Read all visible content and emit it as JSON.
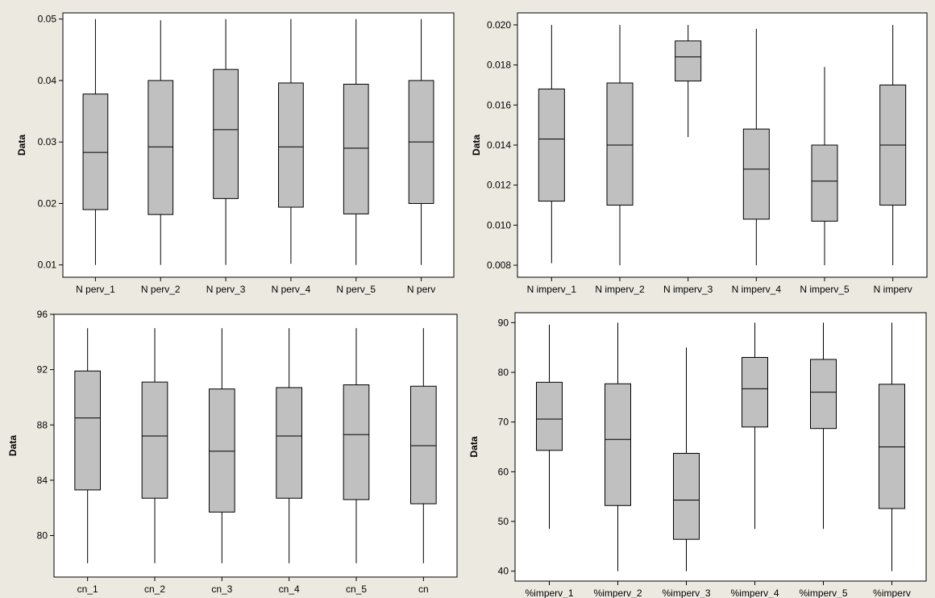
{
  "chart_data": [
    {
      "type": "box",
      "ylabel": "Data",
      "ylim": [
        0.008,
        0.051
      ],
      "yticks": [
        0.01,
        0.02,
        0.03,
        0.04,
        0.05
      ],
      "ytick_labels": [
        "0.01",
        "0.02",
        "0.03",
        "0.04",
        "0.05"
      ],
      "categories": [
        "N perv_1",
        "N perv_2",
        "N perv_3",
        "N perv_4",
        "N perv_5",
        "N perv"
      ],
      "boxes": [
        {
          "min": 0.01,
          "q1": 0.019,
          "median": 0.0283,
          "q3": 0.0378,
          "max": 0.05
        },
        {
          "min": 0.01,
          "q1": 0.0182,
          "median": 0.0292,
          "q3": 0.04,
          "max": 0.0498
        },
        {
          "min": 0.01,
          "q1": 0.0208,
          "median": 0.032,
          "q3": 0.0418,
          "max": 0.05
        },
        {
          "min": 0.0102,
          "q1": 0.0194,
          "median": 0.0292,
          "q3": 0.0396,
          "max": 0.05
        },
        {
          "min": 0.01,
          "q1": 0.0183,
          "median": 0.029,
          "q3": 0.0394,
          "max": 0.05
        },
        {
          "min": 0.01,
          "q1": 0.02,
          "median": 0.03,
          "q3": 0.04,
          "max": 0.05
        }
      ]
    },
    {
      "type": "box",
      "ylabel": "Data",
      "ylim": [
        0.0074,
        0.0206
      ],
      "yticks": [
        0.008,
        0.01,
        0.012,
        0.014,
        0.016,
        0.018,
        0.02
      ],
      "ytick_labels": [
        "0.008",
        "0.010",
        "0.012",
        "0.014",
        "0.016",
        "0.018",
        "0.020"
      ],
      "categories": [
        "N imperv_1",
        "N imperv_2",
        "N imperv_3",
        "N imperv_4",
        "N imperv_5",
        "N imperv"
      ],
      "boxes": [
        {
          "min": 0.0081,
          "q1": 0.0112,
          "median": 0.0143,
          "q3": 0.0168,
          "max": 0.02
        },
        {
          "min": 0.008,
          "q1": 0.011,
          "median": 0.014,
          "q3": 0.0171,
          "max": 0.02
        },
        {
          "min": 0.0144,
          "q1": 0.0172,
          "median": 0.0184,
          "q3": 0.0192,
          "max": 0.02
        },
        {
          "min": 0.008,
          "q1": 0.0103,
          "median": 0.0128,
          "q3": 0.0148,
          "max": 0.0198
        },
        {
          "min": 0.008,
          "q1": 0.0102,
          "median": 0.0122,
          "q3": 0.014,
          "max": 0.0179
        },
        {
          "min": 0.008,
          "q1": 0.011,
          "median": 0.014,
          "q3": 0.017,
          "max": 0.02
        }
      ]
    },
    {
      "type": "box",
      "ylabel": "Data",
      "ylim": [
        77,
        96
      ],
      "yticks": [
        80,
        84,
        88,
        92,
        96
      ],
      "ytick_labels": [
        "80",
        "84",
        "88",
        "92",
        "96"
      ],
      "categories": [
        "cn_1",
        "cn_2",
        "cn_3",
        "cn_4",
        "cn_5",
        "cn"
      ],
      "boxes": [
        {
          "min": 78,
          "q1": 83.3,
          "median": 88.5,
          "q3": 91.9,
          "max": 95
        },
        {
          "min": 78,
          "q1": 82.7,
          "median": 87.2,
          "q3": 91.1,
          "max": 95
        },
        {
          "min": 78,
          "q1": 81.7,
          "median": 86.1,
          "q3": 90.6,
          "max": 95
        },
        {
          "min": 78,
          "q1": 82.7,
          "median": 87.2,
          "q3": 90.7,
          "max": 95
        },
        {
          "min": 78,
          "q1": 82.6,
          "median": 87.3,
          "q3": 90.9,
          "max": 95
        },
        {
          "min": 78,
          "q1": 82.3,
          "median": 86.5,
          "q3": 90.8,
          "max": 95
        }
      ]
    },
    {
      "type": "box",
      "ylabel": "Data",
      "ylim": [
        38,
        92
      ],
      "yticks": [
        40,
        50,
        60,
        70,
        80,
        90
      ],
      "ytick_labels": [
        "40",
        "50",
        "60",
        "70",
        "80",
        "90"
      ],
      "categories": [
        "%imperv_1",
        "%imperv_2",
        "%imperv_3",
        "%imperv_4",
        "%imperv_5",
        "%imperv"
      ],
      "boxes": [
        {
          "min": 48.5,
          "q1": 64.3,
          "median": 70.6,
          "q3": 78,
          "max": 89.6
        },
        {
          "min": 40,
          "q1": 53.2,
          "median": 66.5,
          "q3": 77.7,
          "max": 90
        },
        {
          "min": 40,
          "q1": 46.4,
          "median": 54.3,
          "q3": 63.7,
          "max": 85
        },
        {
          "min": 48.5,
          "q1": 69,
          "median": 76.7,
          "q3": 83,
          "max": 90
        },
        {
          "min": 48.5,
          "q1": 68.7,
          "median": 76,
          "q3": 82.6,
          "max": 90
        },
        {
          "min": 40,
          "q1": 52.6,
          "median": 65,
          "q3": 77.6,
          "max": 90
        }
      ]
    }
  ],
  "style": {
    "background": "#ece9e0",
    "plot_bg": "#ffffff",
    "box_fill": "#c0c0c0",
    "line": "#000000"
  }
}
